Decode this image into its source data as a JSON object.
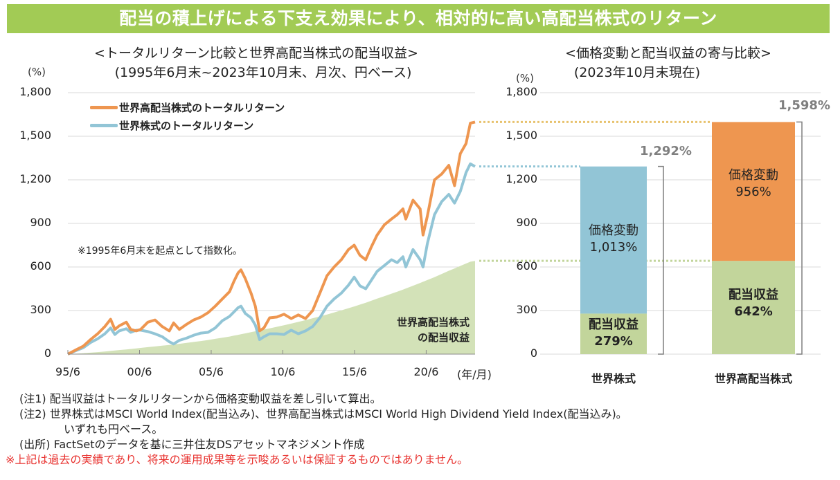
{
  "banner": {
    "title": "配当の積上げによる下支え効果により、相対的に高い高配当株式のリターン"
  },
  "left_panel": {
    "title": "<トータルリターン比較と世界高配当株式の配当収益>",
    "subtitle": "(1995年6月末~2023年10月末、月次、円ベース)",
    "unit": "(%)",
    "x_unit": "(年/月)",
    "note": "※1995年6月末を起点として指数化。",
    "area_label_line1": "世界高配当株式",
    "area_label_line2": "の配当収益"
  },
  "right_panel": {
    "title": "<価格変動と配当収益の寄与比較>",
    "subtitle": "(2023年10月末現在)",
    "unit": "(%)"
  },
  "colors": {
    "banner": "#a2cb55",
    "high_dividend": "#ee9650",
    "world": "#92c5d6",
    "dividend_area": "#d3e2b8",
    "dividend_bar": "#c2d59b",
    "total_label": "#7f7f7f",
    "disclaimer": "#e8322f"
  },
  "chart_data": [
    {
      "type": "line",
      "title": "<トータルリターン比較と世界高配当株式の配当収益>",
      "ylabel": "(%)",
      "xlabel": "(年/月)",
      "ylim": [
        0,
        1800
      ],
      "yticks": [
        "0",
        "300",
        "600",
        "900",
        "1,200",
        "1,500",
        "1,800"
      ],
      "ytick_values": [
        0,
        300,
        600,
        900,
        1200,
        1500,
        1800
      ],
      "xticks": [
        "95/6",
        "00/6",
        "05/6",
        "10/6",
        "15/6",
        "20/6"
      ],
      "xtick_values": [
        1995.42,
        2000.42,
        2005.42,
        2010.42,
        2015.42,
        2020.42
      ],
      "xlim": [
        1995.42,
        2023.83
      ],
      "grid": true,
      "legend_position": "top-left",
      "x": [
        1995.42,
        1996.0,
        1996.5,
        1997.0,
        1997.5,
        1998.0,
        1998.4,
        1998.7,
        1999.0,
        1999.5,
        1999.8,
        2000.2,
        2000.5,
        2001.0,
        2001.5,
        2002.0,
        2002.5,
        2002.8,
        2003.2,
        2003.7,
        2004.2,
        2004.7,
        2005.2,
        2005.7,
        2006.2,
        2006.7,
        2007.0,
        2007.3,
        2007.5,
        2007.8,
        2008.2,
        2008.5,
        2008.8,
        2009.1,
        2009.5,
        2010.0,
        2010.5,
        2011.0,
        2011.5,
        2012.0,
        2012.5,
        2013.0,
        2013.5,
        2014.0,
        2014.5,
        2015.0,
        2015.4,
        2015.8,
        2016.2,
        2016.6,
        2017.0,
        2017.5,
        2018.0,
        2018.4,
        2018.8,
        2019.0,
        2019.5,
        2020.0,
        2020.2,
        2020.5,
        2021.0,
        2021.5,
        2022.0,
        2022.4,
        2022.8,
        2023.2,
        2023.5,
        2023.83
      ],
      "series": [
        {
          "name": "世界高配当株式のトータルリターン",
          "values": [
            0,
            30,
            55,
            100,
            140,
            190,
            240,
            170,
            195,
            220,
            170,
            160,
            170,
            220,
            235,
            190,
            160,
            215,
            170,
            205,
            235,
            255,
            285,
            330,
            380,
            430,
            500,
            560,
            580,
            520,
            420,
            330,
            160,
            180,
            250,
            255,
            275,
            245,
            270,
            245,
            300,
            420,
            540,
            600,
            650,
            720,
            750,
            680,
            650,
            740,
            820,
            890,
            930,
            960,
            1000,
            930,
            1060,
            1000,
            820,
            950,
            1200,
            1240,
            1300,
            1160,
            1380,
            1450,
            1590,
            1598
          ]
        },
        {
          "name": "世界株式のトータルリターン",
          "values": [
            0,
            25,
            45,
            80,
            105,
            140,
            180,
            135,
            160,
            175,
            150,
            165,
            165,
            155,
            140,
            120,
            85,
            70,
            95,
            110,
            130,
            145,
            150,
            180,
            230,
            260,
            290,
            320,
            330,
            280,
            250,
            200,
            100,
            120,
            140,
            140,
            135,
            165,
            140,
            160,
            190,
            250,
            330,
            380,
            420,
            475,
            530,
            470,
            450,
            510,
            570,
            610,
            650,
            630,
            670,
            600,
            720,
            650,
            600,
            760,
            960,
            1050,
            1100,
            1040,
            1120,
            1250,
            1310,
            1292
          ]
        },
        {
          "name": "世界高配当株式の配当収益",
          "type": "area",
          "values": [
            0,
            3,
            6,
            10,
            14,
            18,
            22,
            25,
            28,
            32,
            35,
            39,
            43,
            48,
            53,
            58,
            63,
            66,
            71,
            77,
            84,
            90,
            97,
            105,
            113,
            121,
            127,
            133,
            137,
            143,
            151,
            157,
            163,
            169,
            177,
            188,
            199,
            210,
            222,
            234,
            247,
            260,
            273,
            287,
            301,
            316,
            328,
            341,
            354,
            368,
            382,
            399,
            416,
            430,
            444,
            452,
            471,
            490,
            498,
            510,
            530,
            552,
            574,
            590,
            607,
            624,
            636,
            642
          ]
        }
      ]
    },
    {
      "type": "bar",
      "stacked": true,
      "title": "<価格変動と配当収益の寄与比較>",
      "subtitle": "(2023年10月末現在)",
      "ylabel": "(%)",
      "ylim": [
        0,
        1800
      ],
      "yticks": [
        "0",
        "300",
        "600",
        "900",
        "1,200",
        "1,500",
        "1,800"
      ],
      "ytick_values": [
        0,
        300,
        600,
        900,
        1200,
        1500,
        1800
      ],
      "grid": true,
      "categories": [
        "世界株式",
        "世界高配当株式"
      ],
      "series": [
        {
          "name": "配当収益",
          "values": [
            279,
            642
          ],
          "labels": [
            "279%",
            "642%"
          ]
        },
        {
          "name": "価格変動",
          "values": [
            1013,
            956
          ],
          "labels": [
            "1,013%",
            "956%"
          ]
        }
      ],
      "totals": [
        1292,
        1598
      ],
      "total_labels": [
        "1,292%",
        "1,598%"
      ]
    }
  ],
  "footnotes": [
    {
      "prefix": "(注1)",
      "text": "配当収益はトータルリターンから価格変動収益を差し引いて算出。"
    },
    {
      "prefix": "(注2)",
      "text": "世界株式はMSCI World Index(配当込み)、世界高配当株式はMSCI World High Dividend Yield Index(配当込み)。"
    },
    {
      "prefix": "",
      "text": "いずれも円ベース。"
    },
    {
      "prefix": "(出所)",
      "text": "FactSetのデータを基に三井住友DSアセットマネジメント作成"
    }
  ],
  "disclaimer": "※上記は過去の実績であり、将来の運用成果等を示唆あるいは保証するものではありません。"
}
